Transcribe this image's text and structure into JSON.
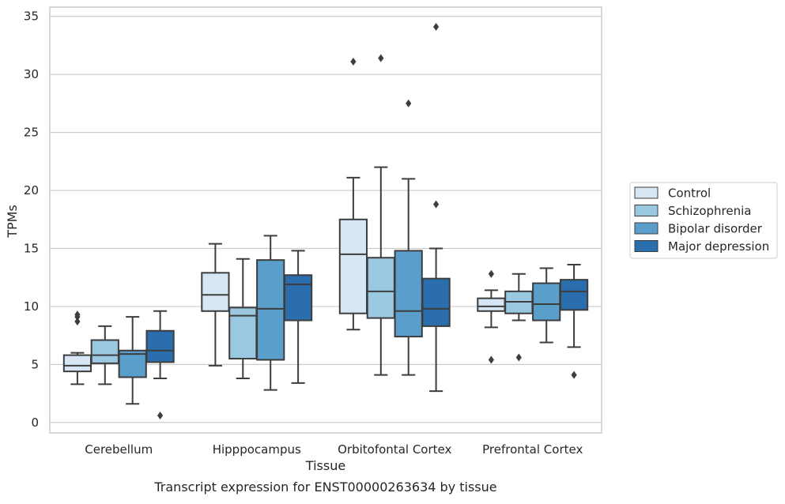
{
  "chart_data": {
    "type": "box",
    "xlabel": "Tissue",
    "ylabel": "TPMs",
    "caption": "Transcript expression for ENST00000263634 by tissue",
    "ylim": [
      -0.9,
      35.8
    ],
    "yticks": [
      0,
      5,
      10,
      15,
      20,
      25,
      30,
      35
    ],
    "grid": "horizontal",
    "legend_position": "right",
    "categories": [
      "Cerebellum",
      "Hipppocampus",
      "Orbitofontal Cortex",
      "Prefrontal Cortex"
    ],
    "series": [
      {
        "name": "Control",
        "color": "#d6e6f4",
        "boxes": [
          {
            "whislo": 3.3,
            "q1": 4.4,
            "med": 4.9,
            "q3": 5.8,
            "whishi": 6.0,
            "fliers": [
              8.7,
              9.1,
              9.3
            ]
          },
          {
            "whislo": 4.9,
            "q1": 9.6,
            "med": 11.0,
            "q3": 12.9,
            "whishi": 15.4,
            "fliers": []
          },
          {
            "whislo": 8.0,
            "q1": 9.4,
            "med": 14.5,
            "q3": 17.5,
            "whishi": 21.1,
            "fliers": [
              31.1
            ]
          },
          {
            "whislo": 8.2,
            "q1": 9.6,
            "med": 10.0,
            "q3": 10.7,
            "whishi": 11.4,
            "fliers": [
              5.4,
              12.8
            ]
          }
        ]
      },
      {
        "name": "Schizophrenia",
        "color": "#9ac8e0",
        "boxes": [
          {
            "whislo": 3.3,
            "q1": 5.1,
            "med": 5.8,
            "q3": 7.1,
            "whishi": 8.3,
            "fliers": []
          },
          {
            "whislo": 3.8,
            "q1": 5.5,
            "med": 9.2,
            "q3": 9.9,
            "whishi": 14.1,
            "fliers": []
          },
          {
            "whislo": 4.1,
            "q1": 9.0,
            "med": 11.3,
            "q3": 14.2,
            "whishi": 22.0,
            "fliers": [
              31.4
            ]
          },
          {
            "whislo": 8.8,
            "q1": 9.4,
            "med": 10.4,
            "q3": 11.3,
            "whishi": 12.8,
            "fliers": [
              5.6
            ]
          }
        ]
      },
      {
        "name": "Bipolar disorder",
        "color": "#5a9fcc",
        "boxes": [
          {
            "whislo": 1.6,
            "q1": 3.9,
            "med": 5.9,
            "q3": 6.2,
            "whishi": 9.1,
            "fliers": []
          },
          {
            "whislo": 2.8,
            "q1": 5.4,
            "med": 9.8,
            "q3": 14.0,
            "whishi": 16.1,
            "fliers": []
          },
          {
            "whislo": 4.1,
            "q1": 7.4,
            "med": 9.6,
            "q3": 14.8,
            "whishi": 21.0,
            "fliers": [
              27.5
            ]
          },
          {
            "whislo": 6.9,
            "q1": 8.8,
            "med": 10.2,
            "q3": 12.0,
            "whishi": 13.3,
            "fliers": []
          }
        ]
      },
      {
        "name": "Major depression",
        "color": "#2a6ead",
        "boxes": [
          {
            "whislo": 3.8,
            "q1": 5.2,
            "med": 6.2,
            "q3": 7.9,
            "whishi": 9.6,
            "fliers": [
              0.6
            ]
          },
          {
            "whislo": 3.4,
            "q1": 8.8,
            "med": 11.9,
            "q3": 12.7,
            "whishi": 14.8,
            "fliers": []
          },
          {
            "whislo": 2.7,
            "q1": 8.3,
            "med": 9.8,
            "q3": 12.4,
            "whishi": 15.0,
            "fliers": [
              18.8,
              34.1
            ]
          },
          {
            "whislo": 6.5,
            "q1": 9.7,
            "med": 11.3,
            "q3": 12.3,
            "whishi": 13.6,
            "fliers": [
              4.1
            ]
          }
        ]
      }
    ]
  }
}
